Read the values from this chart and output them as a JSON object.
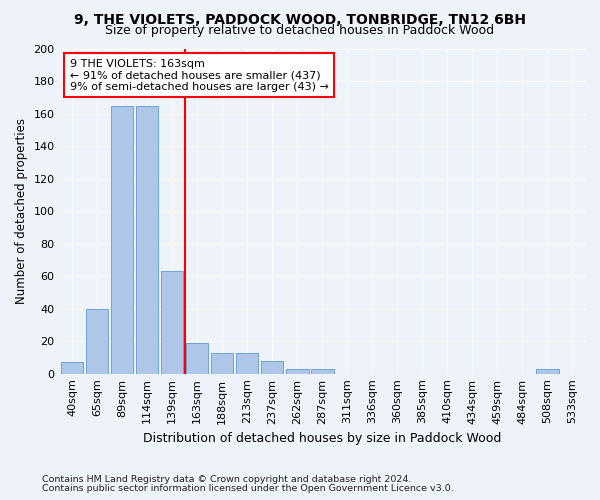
{
  "title1": "9, THE VIOLETS, PADDOCK WOOD, TONBRIDGE, TN12 6BH",
  "title2": "Size of property relative to detached houses in Paddock Wood",
  "xlabel": "Distribution of detached houses by size in Paddock Wood",
  "ylabel": "Number of detached properties",
  "footnote1": "Contains HM Land Registry data © Crown copyright and database right 2024.",
  "footnote2": "Contains public sector information licensed under the Open Government Licence v3.0.",
  "categories": [
    "40sqm",
    "65sqm",
    "89sqm",
    "114sqm",
    "139sqm",
    "163sqm",
    "188sqm",
    "213sqm",
    "237sqm",
    "262sqm",
    "287sqm",
    "311sqm",
    "336sqm",
    "360sqm",
    "385sqm",
    "410sqm",
    "434sqm",
    "459sqm",
    "484sqm",
    "508sqm",
    "533sqm"
  ],
  "values": [
    7,
    40,
    165,
    165,
    63,
    19,
    13,
    13,
    8,
    3,
    3,
    0,
    0,
    0,
    0,
    0,
    0,
    0,
    0,
    3,
    0
  ],
  "bar_color": "#aec6e8",
  "bar_edge_color": "#5b9bd5",
  "red_line_index": 5,
  "annotation_text": "9 THE VIOLETS: 163sqm\n← 91% of detached houses are smaller (437)\n9% of semi-detached houses are larger (43) →",
  "ylim": [
    0,
    200
  ],
  "yticks": [
    0,
    20,
    40,
    60,
    80,
    100,
    120,
    140,
    160,
    180,
    200
  ],
  "background_color": "#eef2f9",
  "grid_color": "#ffffff",
  "title1_fontsize": 10,
  "title2_fontsize": 9,
  "xlabel_fontsize": 9,
  "ylabel_fontsize": 8.5,
  "tick_fontsize": 8,
  "annot_fontsize": 8
}
